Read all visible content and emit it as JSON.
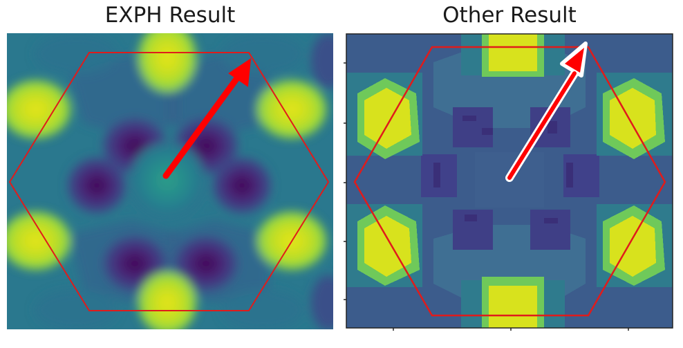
{
  "titles": {
    "left": "EXPH Result",
    "right": "Other Result"
  },
  "colors": {
    "hexagon_outline": "#e01b1b",
    "arrow_fill": "#ff0000",
    "arrow_outline_right": "#ffffff",
    "viridis_dark": "#440154",
    "viridis_blue": "#3b528b",
    "viridis_teal": "#21918c",
    "viridis_green": "#5ec962",
    "viridis_yellow": "#fde725"
  },
  "panels": [
    {
      "id": "left",
      "style": "smooth",
      "frame": false
    },
    {
      "id": "right",
      "style": "pixelated",
      "frame": true
    }
  ]
}
